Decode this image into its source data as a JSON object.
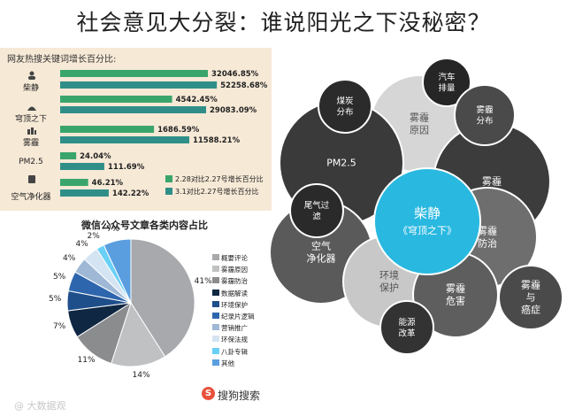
{
  "title": "社会意见大分裂：谁说阳光之下没秘密？",
  "chart_data": [
    {
      "type": "bar",
      "title": "网友热搜关键词增长百分比:",
      "categories": [
        "柴静",
        "穹顶之下",
        "雾霾",
        "PM2.5",
        "空气净化器"
      ],
      "series": [
        {
          "name": "2.28对比2.27号增长百分比",
          "color": "#3aa56a",
          "values": [
            32046.85,
            4542.45,
            1686.59,
            24.04,
            46.21
          ]
        },
        {
          "name": "3.1对比2.27号增长百分比",
          "color": "#2f8f88",
          "values": [
            52258.68,
            29083.09,
            11588.21,
            111.69,
            142.22
          ]
        }
      ],
      "labels": [
        [
          "32046.85%",
          "52258.68%"
        ],
        [
          "4542.45%",
          "29083.09%"
        ],
        [
          "1686.59%",
          "11588.21%"
        ],
        [
          "24.04%",
          "111.69%"
        ],
        [
          "46.21%",
          "142.22%"
        ]
      ],
      "legend": [
        "2.28对比2.27号增长百分比",
        "3.1对比2.27号增长百分比"
      ]
    },
    {
      "type": "pie",
      "title": "微信公众号文章各类内容占比",
      "slices": [
        {
          "label": "概要评论",
          "value": 41,
          "color": "#a7a9ac"
        },
        {
          "label": "雾霾原因",
          "value": 14,
          "color": "#bfc1c3"
        },
        {
          "label": "雾霾防治",
          "value": 11,
          "color": "#8a8c8e"
        },
        {
          "label": "数据解读",
          "value": 7,
          "color": "#0f2742"
        },
        {
          "label": "环境保护",
          "value": 5,
          "color": "#1f4f8a"
        },
        {
          "label": "纪录片逻辑",
          "value": 5,
          "color": "#2e66ad"
        },
        {
          "label": "营销推广",
          "value": 4,
          "color": "#9fb8d6"
        },
        {
          "label": "环保法规",
          "value": 4,
          "color": "#d5e4f2"
        },
        {
          "label": "八卦专辑",
          "value": 2,
          "color": "#6ad0f5"
        },
        {
          "label": "其他",
          "value": 7,
          "color": "#5a9ee0"
        }
      ],
      "pct_labels": [
        "41%",
        "14%",
        "11%",
        "7%",
        "5%",
        "5%",
        "4%",
        "4%",
        "2%",
        "7%"
      ]
    },
    {
      "type": "bubble",
      "center": {
        "line1": "柴静",
        "line2": "《穹顶之下》"
      },
      "nodes": [
        {
          "text": [
            "煤炭",
            "分布"
          ],
          "color": "#2b2b2b"
        },
        {
          "text": [
            "汽车",
            "排量"
          ],
          "color": "#262626"
        },
        {
          "text": [
            "雾霾",
            "原因"
          ],
          "color": "#d6d6d6"
        },
        {
          "text": [
            "雾霾",
            "分布"
          ],
          "color": "#4a4a4a"
        },
        {
          "text": [
            "PM2.5"
          ],
          "color": "#3a3a3a"
        },
        {
          "text": [
            "雾霾"
          ],
          "color": "#3c3c3c"
        },
        {
          "text": [
            "尾气过",
            "滤"
          ],
          "color": "#2a2a2a"
        },
        {
          "text": [
            "空气",
            "净化器"
          ],
          "color": "#5a5a5a"
        },
        {
          "text": [
            "雾霾",
            "防治"
          ],
          "color": "#6e6e6e"
        },
        {
          "text": [
            "环境",
            "保护"
          ],
          "color": "#c8c8c8"
        },
        {
          "text": [
            "雾霾",
            "危害"
          ],
          "color": "#5e5e5e"
        },
        {
          "text": [
            "能源",
            "改革"
          ],
          "color": "#333333"
        },
        {
          "text": [
            "雾霾",
            "与",
            "癌症"
          ],
          "color": "#4a4a4a"
        }
      ]
    }
  ],
  "brand": {
    "logo": "S",
    "text": "搜狗搜索"
  },
  "watermark": "@ 大数据观"
}
